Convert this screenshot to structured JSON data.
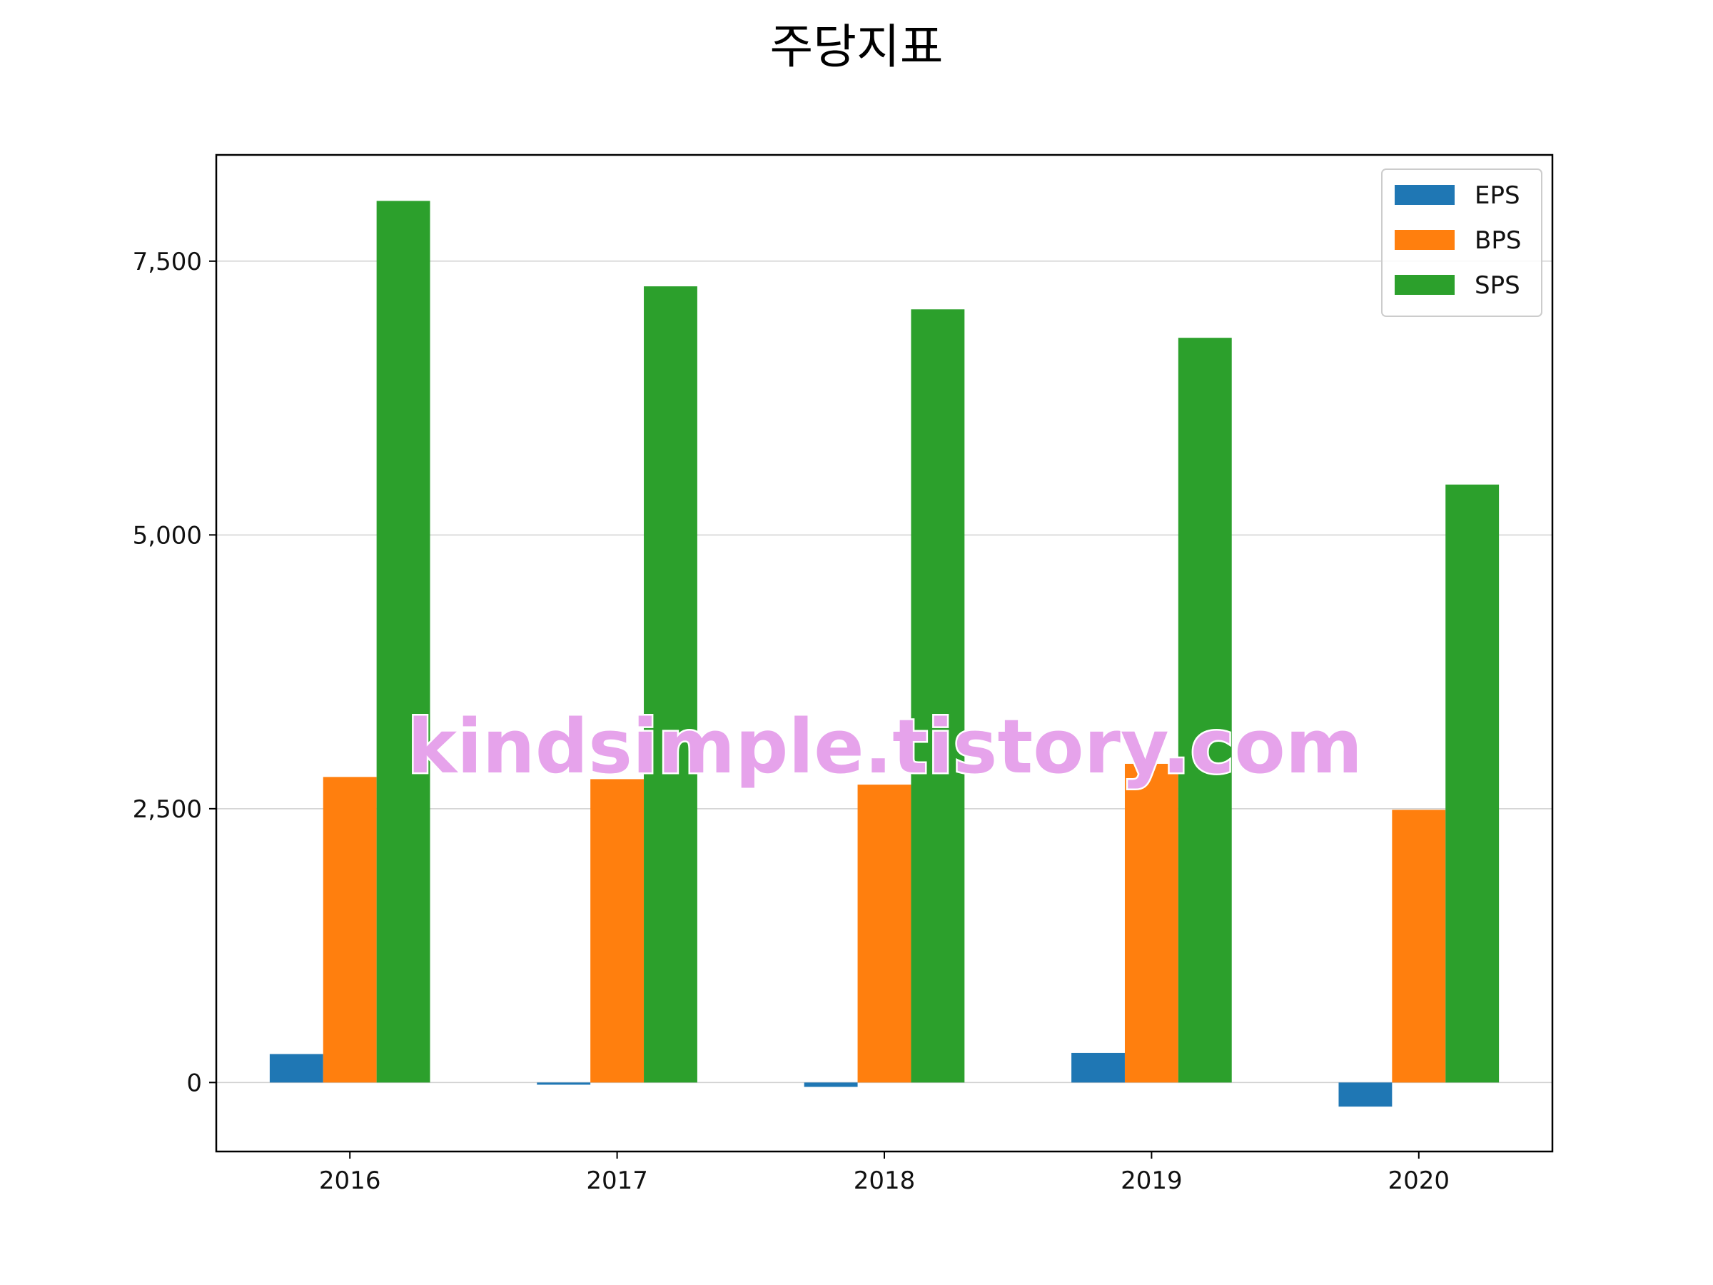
{
  "chart_data": {
    "type": "bar",
    "title": "주당지표",
    "xlabel": "",
    "ylabel": "",
    "categories": [
      "2016",
      "2017",
      "2018",
      "2019",
      "2020"
    ],
    "series": [
      {
        "name": "EPS",
        "color": "#1f77b4",
        "values": [
          260,
          -20,
          -40,
          270,
          -220
        ]
      },
      {
        "name": "BPS",
        "color": "#ff7f0e",
        "values": [
          2790,
          2770,
          2720,
          2910,
          2490
        ]
      },
      {
        "name": "SPS",
        "color": "#2ca02c",
        "values": [
          8050,
          7270,
          7060,
          6800,
          5460
        ]
      }
    ],
    "ylim": [
      -630,
      8470
    ],
    "yticks": [
      0,
      2500,
      5000,
      7500
    ],
    "ytick_labels": [
      "0",
      "2,500",
      "5,000",
      "7,500"
    ],
    "grid": "y",
    "legend_position": "top-right"
  },
  "watermark": "kindsimple.tistory.com"
}
